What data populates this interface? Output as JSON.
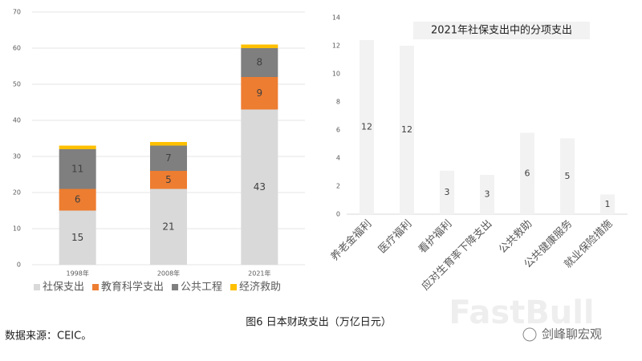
{
  "chart_data": [
    {
      "type": "bar",
      "stacked": true,
      "categories": [
        "1998年",
        "2008年",
        "2021年"
      ],
      "series": [
        {
          "name": "社保支出",
          "color": "#d9d9d9",
          "values": [
            15,
            21,
            43
          ]
        },
        {
          "name": "教育科学支出",
          "color": "#ed7d31",
          "values": [
            6,
            5,
            9
          ]
        },
        {
          "name": "公共工程",
          "color": "#7f7f7f",
          "values": [
            11,
            7,
            8
          ]
        },
        {
          "name": "经济救助",
          "color": "#ffc000",
          "values": [
            1,
            1,
            1
          ]
        }
      ],
      "data_labels": [
        true,
        true,
        true,
        false
      ],
      "ylim": [
        0,
        70
      ],
      "yticks": [
        0,
        10,
        20,
        30,
        40,
        50,
        60,
        70
      ],
      "grid": true,
      "legend": "bottom"
    },
    {
      "type": "bar",
      "title": "2021年社保支出中的分项支出",
      "categories": [
        "养老金福利",
        "医疗福利",
        "看护福利",
        "应对生育率下降支出",
        "公共救助",
        "公共健康服务",
        "就业保险措施"
      ],
      "values": [
        12.4,
        12.0,
        3.1,
        2.8,
        5.8,
        5.4,
        1.4
      ],
      "value_labels": [
        "12",
        "12",
        "3",
        "3",
        "6",
        "5",
        "1"
      ],
      "color": "#f2f2f2",
      "ylim": [
        0,
        14
      ],
      "yticks": [
        0,
        2,
        4,
        6,
        8,
        10,
        12,
        14
      ],
      "grid": false
    }
  ],
  "caption": "图6 日本财政支出（万亿日元）",
  "source": "数据来源：CEIC。",
  "watermarks": [
    "FastBull",
    "剑峰聊宏观"
  ]
}
